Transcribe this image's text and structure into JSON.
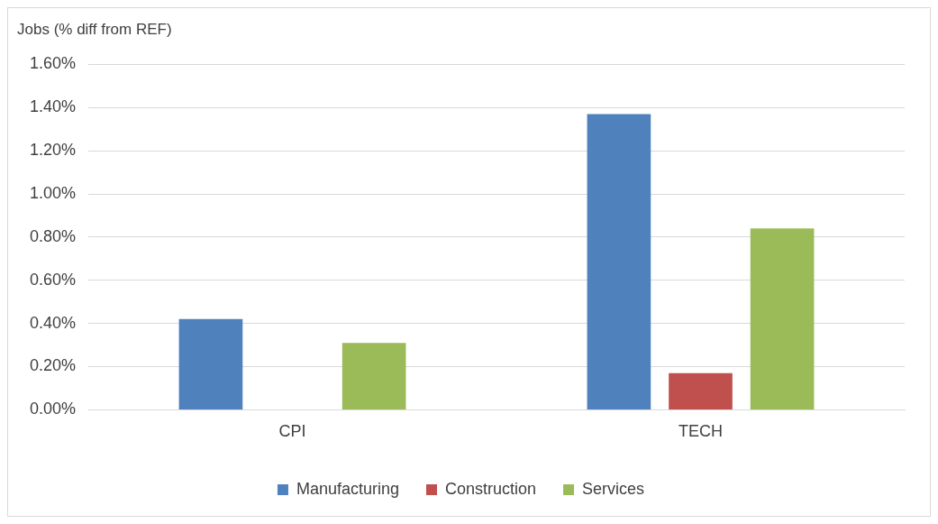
{
  "chart_data": {
    "type": "bar",
    "ylabel": "Jobs (% diff from REF)",
    "categories": [
      "CPI",
      "TECH"
    ],
    "series": [
      {
        "name": "Manufacturing",
        "color": "#4f81bd",
        "values": [
          0.42,
          1.37
        ]
      },
      {
        "name": "Construction",
        "color": "#c0504d",
        "values": [
          0,
          0.17
        ]
      },
      {
        "name": "Services",
        "color": "#9bbb59",
        "values": [
          0.31,
          0.84
        ]
      }
    ],
    "ylim": [
      0,
      1.6
    ],
    "yticks": [
      {
        "value": 0,
        "label": "0.00%"
      },
      {
        "value": 0.2,
        "label": "0.20%"
      },
      {
        "value": 0.4,
        "label": "0.40%"
      },
      {
        "value": 0.6,
        "label": "0.60%"
      },
      {
        "value": 0.8,
        "label": "0.80%"
      },
      {
        "value": 1.0,
        "label": "1.00%"
      },
      {
        "value": 1.2,
        "label": "1.20%"
      },
      {
        "value": 1.4,
        "label": "1.40%"
      },
      {
        "value": 1.6,
        "label": "1.60%"
      }
    ],
    "grid": "y",
    "legend": "bottom"
  }
}
